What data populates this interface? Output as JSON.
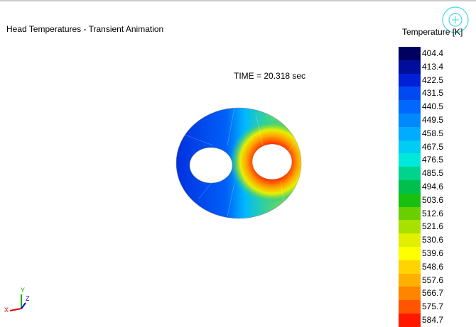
{
  "header": {
    "title": "Head Temperatures - Transient Animation"
  },
  "time_label": "TIME =  20.318 sec",
  "legend": {
    "title": "Temperature [K]",
    "entries": [
      {
        "label": "404.4",
        "color": "#000060"
      },
      {
        "label": "413.4",
        "color": "#000e9c"
      },
      {
        "label": "422.5",
        "color": "#0020d8"
      },
      {
        "label": "431.5",
        "color": "#0048f0"
      },
      {
        "label": "440.5",
        "color": "#0068ff"
      },
      {
        "label": "449.5",
        "color": "#0088ff"
      },
      {
        "label": "458.5",
        "color": "#00acff"
      },
      {
        "label": "467.5",
        "color": "#00ccf4"
      },
      {
        "label": "476.5",
        "color": "#00e8dc"
      },
      {
        "label": "485.5",
        "color": "#00d48c"
      },
      {
        "label": "494.6",
        "color": "#00c04c"
      },
      {
        "label": "503.6",
        "color": "#18c010"
      },
      {
        "label": "512.6",
        "color": "#68d000"
      },
      {
        "label": "521.6",
        "color": "#a8e000"
      },
      {
        "label": "530.6",
        "color": "#e0f000"
      },
      {
        "label": "539.6",
        "color": "#ffff00"
      },
      {
        "label": "548.6",
        "color": "#ffd400"
      },
      {
        "label": "557.6",
        "color": "#ffb000"
      },
      {
        "label": "566.7",
        "color": "#ff8400"
      },
      {
        "label": "575.7",
        "color": "#ff5400"
      },
      {
        "label": "584.7",
        "color": "#ff1800"
      }
    ]
  },
  "axes": {
    "x": "X",
    "y": "Y",
    "z": "Z"
  }
}
